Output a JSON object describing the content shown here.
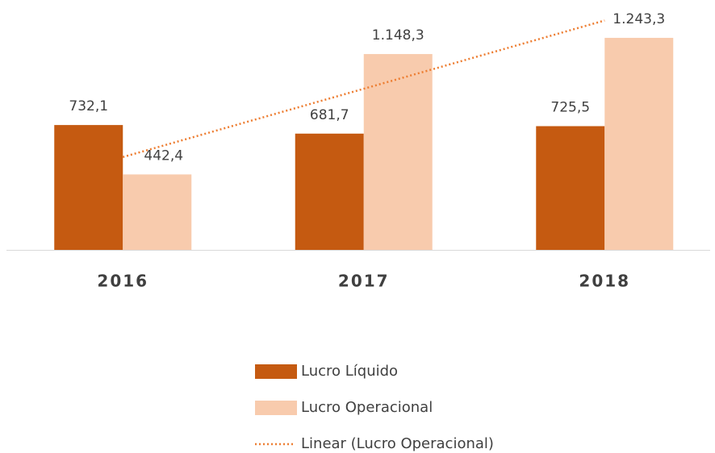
{
  "chart_data": {
    "type": "bar",
    "categories": [
      "2016",
      "2017",
      "2018"
    ],
    "series": [
      {
        "name": "Lucro Líquido",
        "color": "#c55a11",
        "values": [
          732.1,
          681.7,
          725.5
        ],
        "value_labels": [
          "732,1",
          "681,7",
          "725,5"
        ]
      },
      {
        "name": "Lucro Operacional",
        "color": "#f8cbad",
        "values": [
          442.4,
          1148.3,
          1243.3
        ],
        "value_labels": [
          "442,4",
          "1.148,3",
          "1.243,3"
        ],
        "trendline": {
          "name": "Linear (Lucro Operacional)",
          "type": "linear",
          "color": "#ed7d31"
        }
      }
    ],
    "ylim": [
      0,
      1400
    ]
  }
}
